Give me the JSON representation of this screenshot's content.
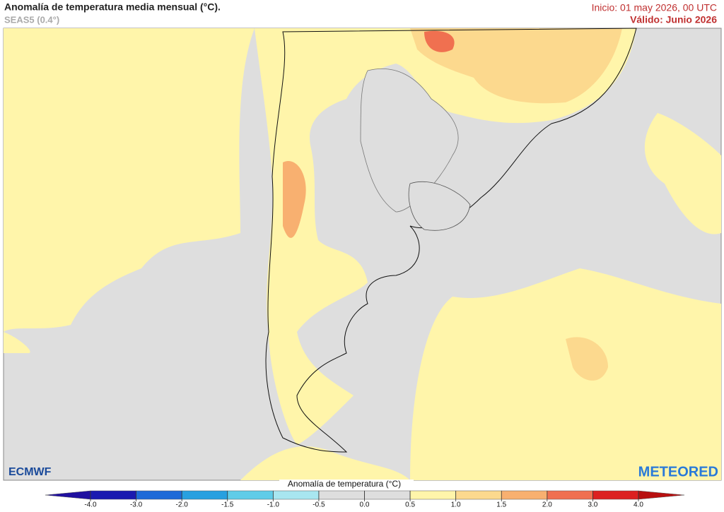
{
  "header": {
    "title": "Anomalía de temperatura media mensual (°C).",
    "subtitle": "SEAS5 (0.4°)",
    "init": "Inicio: 01 may 2026, 00 UTC",
    "valid": "Válido: Junio 2026"
  },
  "logos": {
    "left": "ECMWF",
    "right": "METEORED"
  },
  "colorbar": {
    "title": "Anomalía de temperatura (°C)",
    "ticks": [
      {
        "value": -4,
        "label": "-4.0"
      },
      {
        "value": -3,
        "label": "-3.0"
      },
      {
        "value": -2,
        "label": "-2.0"
      },
      {
        "value": -1.5,
        "label": "-1.5"
      },
      {
        "value": -1,
        "label": "-1.0"
      },
      {
        "value": -0.5,
        "label": "-0.5"
      },
      {
        "value": 0,
        "label": "0.0"
      },
      {
        "value": 0.5,
        "label": "0.5"
      },
      {
        "value": 1,
        "label": "1.0"
      },
      {
        "value": 1.5,
        "label": "1.5"
      },
      {
        "value": 2,
        "label": "2.0"
      },
      {
        "value": 3,
        "label": "3.0"
      },
      {
        "value": 4,
        "label": "4.0"
      }
    ],
    "colors": [
      "#1a1ab0",
      "#1e6ad8",
      "#28a0e0",
      "#60cce8",
      "#a8e6f0",
      "#dedede",
      "#dedede",
      "#fff5aa",
      "#fcd98e",
      "#f8b070",
      "#f07050",
      "#dc2020"
    ],
    "under_color": "#2010a0",
    "over_color": "#b81010"
  }
}
